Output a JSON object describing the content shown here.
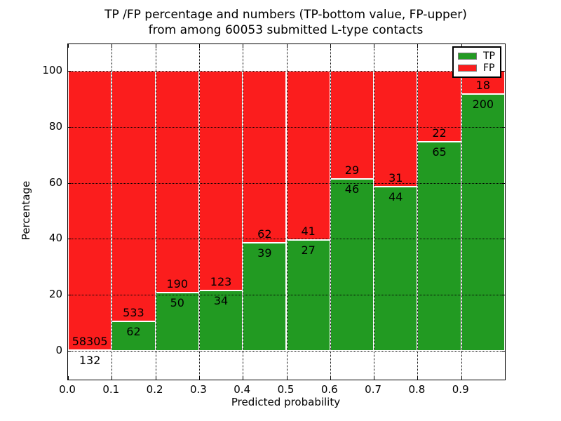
{
  "figure": {
    "title_line1": "TP /FP percentage and numbers (TP-bottom value, FP-upper)",
    "title_line2": "from among 60053 submitted L-type contacts"
  },
  "axes": {
    "xlabel": "Predicted probability",
    "ylabel": "Percentage",
    "x_tick_labels": [
      "0.0",
      "0.1",
      "0.2",
      "0.3",
      "0.4",
      "0.5",
      "0.6",
      "0.7",
      "0.8",
      "0.9"
    ],
    "x_tick_values": [
      0.0,
      0.1,
      0.2,
      0.3,
      0.4,
      0.5,
      0.6,
      0.7,
      0.8,
      0.9
    ],
    "y_tick_labels": [
      "0",
      "20",
      "40",
      "60",
      "80",
      "100"
    ],
    "y_tick_values": [
      0,
      20,
      40,
      60,
      80,
      100
    ]
  },
  "palette": {
    "tp_green": "#229a22",
    "fp_red": "#fb1d1d",
    "grid": "#000000"
  },
  "legend": {
    "items": [
      {
        "label": "TP",
        "color": "#229a22"
      },
      {
        "label": "FP",
        "color": "#fb1d1d"
      }
    ],
    "position": "upper right"
  },
  "chart_data": {
    "type": "bar",
    "stacked": true,
    "normalized_to_percent": true,
    "title": "TP /FP percentage and numbers (TP-bottom value, FP-upper) from among 60053 submitted L-type contacts",
    "xlabel": "Predicted probability",
    "ylabel": "Percentage",
    "total_submitted_contacts": 60053,
    "bin_width": 0.1,
    "bin_starts": [
      0.0,
      0.1,
      0.2,
      0.3,
      0.4,
      0.5,
      0.6,
      0.7,
      0.8,
      0.9
    ],
    "series": [
      {
        "name": "TP",
        "color": "#229a22",
        "counts": [
          132,
          62,
          50,
          34,
          39,
          27,
          46,
          44,
          65,
          200
        ]
      },
      {
        "name": "FP",
        "color": "#fb1d1d",
        "counts": [
          58305,
          533,
          190,
          123,
          62,
          41,
          29,
          31,
          22,
          18
        ]
      }
    ],
    "bar_label_rule": "TP count printed below the TP/FP boundary, FP count printed above it",
    "xlim": [
      0.0,
      1.0
    ],
    "ylim_displayed": [
      -10.3,
      109.6
    ],
    "grid": "dotted",
    "legend_position": "upper right"
  }
}
